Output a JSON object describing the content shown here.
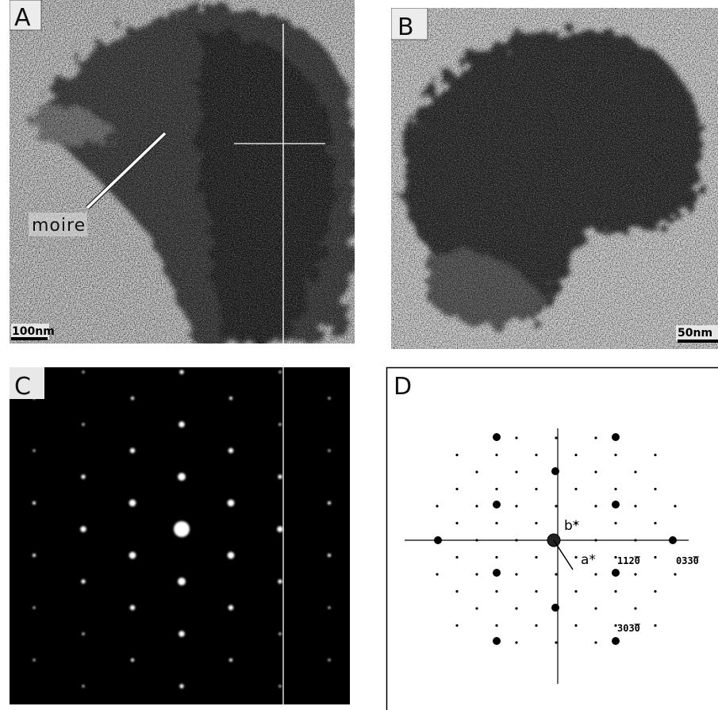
{
  "panels": [
    {
      "label": "A",
      "annotation": "moire",
      "scale_bar": "100nm"
    },
    {
      "label": "B",
      "scale_bar": "50nm"
    },
    {
      "label": "C"
    },
    {
      "label": "D",
      "vectors": [
        "b*",
        "a*"
      ],
      "reflections": [
        "112̅0",
        "033̅0",
        "303̅0"
      ]
    }
  ]
}
